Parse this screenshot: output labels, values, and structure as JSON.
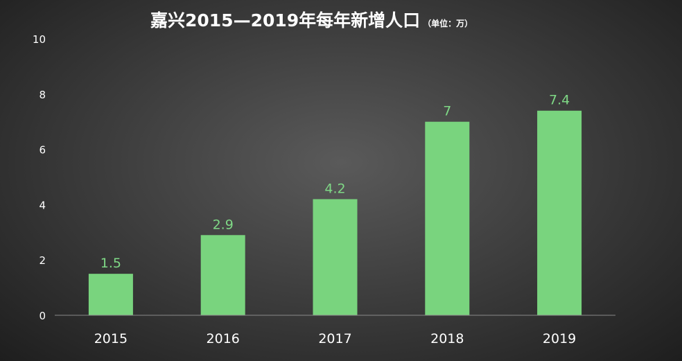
{
  "chart_data": {
    "type": "bar",
    "title": "嘉兴2015—2019年每年新增人口",
    "subtitle": "（单位：万）",
    "categories": [
      "2015",
      "2016",
      "2017",
      "2018",
      "2019"
    ],
    "values": [
      1.5,
      2.9,
      4.2,
      7,
      7.4
    ],
    "data_labels": [
      "1.5",
      "2.9",
      "4.2",
      "7",
      "7.4"
    ],
    "ylim": [
      0,
      10
    ],
    "yticks": [
      "0",
      "2",
      "4",
      "6",
      "8",
      "10"
    ],
    "xlabel": "",
    "ylabel": "",
    "grid": false,
    "colors": {
      "bar": "#79d47e",
      "data_label": "#7fd986",
      "axis": "#8a8a8a",
      "text": "#ffffff"
    }
  }
}
